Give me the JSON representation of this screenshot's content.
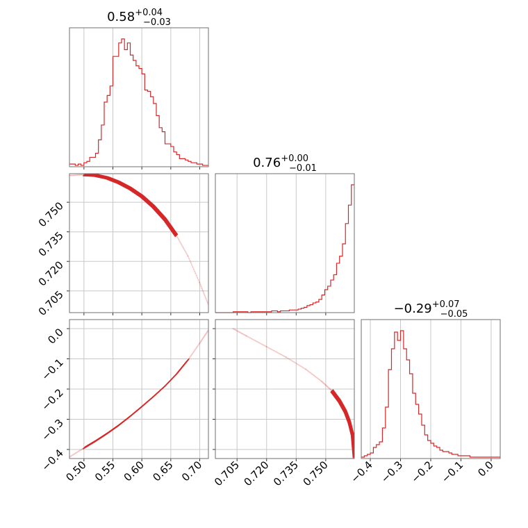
{
  "chart_data": {
    "type": "corner",
    "color": "#d62728",
    "grid": true,
    "parameters": [
      {
        "title": {
          "median": "0.58",
          "plus": "+0.04",
          "minus": "−0.03"
        },
        "range": [
          0.475,
          0.715
        ],
        "ticks": [
          0.5,
          0.55,
          0.6,
          0.65,
          0.7
        ],
        "tick_labels": [
          "0.50",
          "0.55",
          "0.60",
          "0.65",
          "0.70"
        ],
        "hist_bins": [
          0.475,
          0.48,
          0.485,
          0.49,
          0.495,
          0.5,
          0.505,
          0.51,
          0.515,
          0.52,
          0.525,
          0.53,
          0.535,
          0.54,
          0.545,
          0.55,
          0.555,
          0.56,
          0.565,
          0.57,
          0.575,
          0.58,
          0.585,
          0.59,
          0.595,
          0.6,
          0.605,
          0.61,
          0.615,
          0.62,
          0.625,
          0.63,
          0.635,
          0.64,
          0.645,
          0.65,
          0.655,
          0.66,
          0.665,
          0.67,
          0.675,
          0.68,
          0.685,
          0.69,
          0.695,
          0.7,
          0.705,
          0.71,
          0.715
        ],
        "hist_counts": [
          2,
          2,
          1,
          2,
          1,
          3,
          4,
          7,
          7,
          10,
          20,
          31,
          48,
          53,
          60,
          82,
          82,
          92,
          95,
          87,
          92,
          83,
          79,
          75,
          73,
          69,
          57,
          56,
          52,
          47,
          38,
          29,
          26,
          17,
          17,
          15,
          11,
          9,
          6,
          6,
          5,
          4,
          3,
          3,
          2,
          2,
          1,
          1
        ]
      },
      {
        "title": {
          "median": "0.76",
          "plus": "+0.00",
          "minus": "−0.01"
        },
        "range": [
          0.694,
          0.7645
        ],
        "ticks": [
          0.705,
          0.72,
          0.735,
          0.75
        ],
        "tick_labels": [
          "0.705",
          "0.720",
          "0.735",
          "0.750"
        ],
        "hist_bins": [
          0.694,
          0.6955,
          0.697,
          0.6985,
          0.7,
          0.7015,
          0.703,
          0.7045,
          0.706,
          0.7075,
          0.709,
          0.7105,
          0.712,
          0.7135,
          0.715,
          0.7165,
          0.718,
          0.7195,
          0.721,
          0.7225,
          0.724,
          0.7255,
          0.727,
          0.7285,
          0.73,
          0.7315,
          0.733,
          0.7345,
          0.736,
          0.7375,
          0.739,
          0.7405,
          0.742,
          0.7435,
          0.745,
          0.7465,
          0.748,
          0.7495,
          0.751,
          0.7525,
          0.754,
          0.7555,
          0.757,
          0.7585,
          0.76,
          0.7615,
          0.763,
          0.7645
        ],
        "hist_counts": [
          0,
          0,
          0,
          0,
          0,
          0,
          1,
          1,
          1,
          1,
          1,
          0,
          1,
          1,
          1,
          1,
          1,
          1,
          1,
          2,
          2,
          1,
          2,
          2,
          2,
          3,
          3,
          3,
          4,
          5,
          6,
          8,
          9,
          11,
          12,
          15,
          20,
          26,
          30,
          37,
          43,
          56,
          64,
          78,
          101,
          122,
          145
        ]
      },
      {
        "title": {
          "median": "−0.29",
          "plus": "+0.07",
          "minus": "−0.05"
        },
        "range": [
          -0.43,
          0.03
        ],
        "ticks": [
          -0.4,
          -0.3,
          -0.2,
          -0.1,
          0.0
        ],
        "tick_labels": [
          "−0.4",
          "−0.3",
          "−0.2",
          "−0.1",
          "0.0"
        ],
        "hist_bins": [
          -0.43,
          -0.42,
          -0.41,
          -0.4,
          -0.39,
          -0.38,
          -0.37,
          -0.36,
          -0.35,
          -0.34,
          -0.33,
          -0.32,
          -0.31,
          -0.3,
          -0.29,
          -0.28,
          -0.27,
          -0.26,
          -0.25,
          -0.24,
          -0.23,
          -0.22,
          -0.21,
          -0.2,
          -0.19,
          -0.18,
          -0.17,
          -0.16,
          -0.15,
          -0.14,
          -0.13,
          -0.12,
          -0.11,
          -0.1,
          -0.09,
          -0.08,
          -0.07,
          -0.06,
          -0.05,
          -0.04,
          -0.03,
          -0.02,
          -0.01,
          0.0,
          0.01,
          0.02,
          0.03
        ],
        "hist_counts": [
          1,
          2,
          3,
          4,
          8,
          10,
          12,
          22,
          37,
          64,
          79,
          91,
          85,
          92,
          79,
          71,
          61,
          47,
          39,
          32,
          24,
          17,
          13,
          11,
          9,
          8,
          6,
          5,
          5,
          4,
          3,
          3,
          2,
          2,
          2,
          2,
          1,
          1,
          1,
          1,
          1,
          1,
          1,
          1,
          1,
          1
        ]
      }
    ],
    "y_tick_labels": {
      "row1": [
        "0.750",
        "0.735",
        "0.720",
        "0.705"
      ],
      "row2": [
        "0.0",
        "−0.1",
        "−0.2",
        "−0.3",
        "−0.4"
      ]
    },
    "x_tick_labels": {
      "col0": [
        "0.50",
        "0.55",
        "0.60",
        "0.65",
        "0.70"
      ],
      "col1": [
        "0.705",
        "0.720",
        "0.735",
        "0.750"
      ],
      "col2": [
        "−0.4",
        "−0.3",
        "−0.2",
        "−0.1",
        "0.0"
      ]
    },
    "curve_p0_p1": {
      "description": "",
      "x": [
        0.475,
        0.5,
        0.52,
        0.54,
        0.56,
        0.58,
        0.6,
        0.62,
        0.64,
        0.66,
        0.68,
        0.7,
        0.715
      ],
      "y": [
        0.7636,
        0.764,
        0.7637,
        0.7624,
        0.7601,
        0.757,
        0.753,
        0.7478,
        0.7413,
        0.733,
        0.7225,
        0.709,
        0.698
      ]
    },
    "curve_p0_p2": {
      "x": [
        0.475,
        0.5,
        0.52,
        0.54,
        0.56,
        0.58,
        0.6,
        0.62,
        0.64,
        0.66,
        0.68,
        0.7,
        0.715
      ],
      "y": [
        -0.425,
        -0.395,
        -0.372,
        -0.347,
        -0.32,
        -0.29,
        -0.258,
        -0.225,
        -0.19,
        -0.15,
        -0.103,
        -0.048,
        -0.005
      ]
    },
    "curve_p1_p2": {
      "x": [
        0.703,
        0.71,
        0.72,
        0.73,
        0.74,
        0.748,
        0.753,
        0.757,
        0.76,
        0.762,
        0.7635,
        0.7645
      ],
      "y": [
        0.0,
        -0.025,
        -0.06,
        -0.095,
        -0.135,
        -0.175,
        -0.205,
        -0.24,
        -0.275,
        -0.31,
        -0.35,
        -0.425
      ]
    }
  }
}
